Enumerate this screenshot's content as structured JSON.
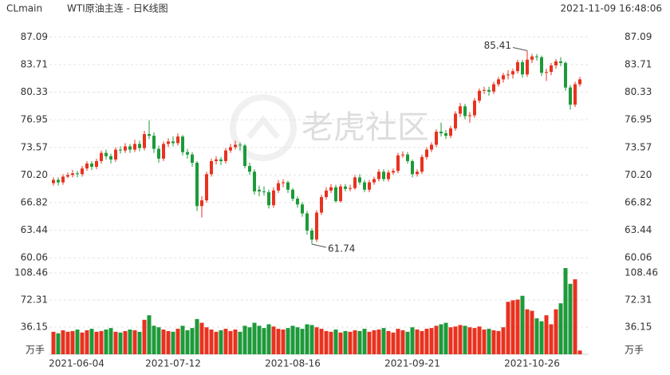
{
  "header": {
    "symbol": "CLmain",
    "title": "WTI原油主连 - 日K线图",
    "timestamp": "2021-11-09 16:48:06"
  },
  "chart_data": {
    "type": "candlestick",
    "watermark": "老虎社区",
    "up_color": "#e8321f",
    "down_color": "#1d9a3a",
    "categories": [
      "2021-06-04",
      null,
      null,
      null,
      null,
      null,
      null,
      null,
      null,
      null,
      null,
      null,
      null,
      null,
      null,
      null,
      null,
      null,
      null,
      null,
      null,
      null,
      null,
      null,
      null,
      "2021-07-12",
      null,
      null,
      null,
      null,
      null,
      null,
      null,
      null,
      null,
      null,
      null,
      null,
      null,
      null,
      null,
      null,
      null,
      null,
      null,
      null,
      null,
      null,
      null,
      null,
      "2021-08-16",
      null,
      null,
      null,
      null,
      null,
      null,
      null,
      null,
      null,
      null,
      null,
      null,
      null,
      null,
      null,
      null,
      null,
      null,
      null,
      null,
      null,
      null,
      null,
      null,
      "2021-09-21",
      null,
      null,
      null,
      null,
      null,
      null,
      null,
      null,
      null,
      null,
      null,
      null,
      null,
      null,
      null,
      null,
      null,
      null,
      null,
      null,
      null,
      null,
      null,
      null,
      "2021-10-26",
      null,
      null,
      null,
      null,
      null,
      null,
      null,
      null,
      null,
      null
    ],
    "ohlc": [
      [
        69.2,
        69.9,
        68.9,
        69.6
      ],
      [
        69.6,
        69.9,
        68.9,
        69.3
      ],
      [
        69.3,
        70.3,
        69.0,
        70.0
      ],
      [
        70.0,
        70.5,
        69.8,
        70.2
      ],
      [
        70.2,
        70.8,
        69.9,
        70.4
      ],
      [
        70.4,
        70.7,
        69.9,
        70.3
      ],
      [
        70.3,
        71.3,
        70.0,
        71.0
      ],
      [
        71.0,
        71.9,
        70.7,
        71.6
      ],
      [
        71.6,
        71.9,
        70.8,
        71.2
      ],
      [
        71.2,
        72.2,
        70.9,
        71.9
      ],
      [
        71.9,
        73.2,
        71.6,
        72.9
      ],
      [
        72.9,
        73.3,
        72.1,
        72.5
      ],
      [
        72.5,
        72.8,
        71.6,
        72.1
      ],
      [
        72.1,
        73.6,
        71.8,
        73.3
      ],
      [
        73.3,
        73.7,
        72.8,
        73.2
      ],
      [
        73.2,
        74.1,
        72.9,
        73.7
      ],
      [
        73.7,
        74.0,
        72.9,
        73.3
      ],
      [
        73.3,
        74.5,
        73.0,
        74.0
      ],
      [
        74.0,
        74.4,
        73.1,
        73.5
      ],
      [
        73.5,
        75.6,
        73.2,
        75.2
      ],
      [
        75.2,
        76.9,
        74.6,
        75.0
      ],
      [
        75.0,
        75.4,
        72.9,
        73.4
      ],
      [
        73.4,
        73.8,
        71.7,
        72.2
      ],
      [
        72.2,
        74.3,
        71.9,
        74.0
      ],
      [
        74.0,
        74.7,
        73.6,
        74.3
      ],
      [
        74.3,
        74.9,
        73.7,
        74.1
      ],
      [
        74.1,
        75.3,
        73.8,
        74.9
      ],
      [
        74.9,
        75.1,
        72.6,
        73.0
      ],
      [
        73.0,
        73.4,
        72.2,
        72.7
      ],
      [
        72.7,
        73.0,
        71.2,
        71.7
      ],
      [
        71.7,
        71.9,
        65.8,
        66.4
      ],
      [
        66.4,
        67.6,
        65.0,
        67.1
      ],
      [
        67.1,
        70.6,
        66.8,
        70.3
      ],
      [
        70.3,
        72.2,
        70.0,
        71.9
      ],
      [
        71.9,
        72.5,
        71.5,
        72.1
      ],
      [
        72.1,
        72.4,
        71.4,
        71.9
      ],
      [
        71.9,
        73.5,
        71.6,
        73.2
      ],
      [
        73.2,
        74.0,
        72.9,
        73.6
      ],
      [
        73.6,
        74.4,
        73.3,
        73.9
      ],
      [
        73.9,
        74.2,
        73.2,
        73.8
      ],
      [
        73.8,
        74.0,
        71.0,
        71.3
      ],
      [
        71.3,
        71.7,
        70.2,
        70.6
      ],
      [
        70.6,
        70.9,
        67.8,
        68.2
      ],
      [
        68.4,
        68.9,
        67.6,
        68.2
      ],
      [
        68.2,
        68.8,
        67.7,
        68.1
      ],
      [
        68.1,
        68.4,
        66.1,
        66.5
      ],
      [
        66.5,
        68.7,
        66.2,
        68.3
      ],
      [
        68.3,
        69.6,
        68.0,
        69.2
      ],
      [
        69.2,
        69.7,
        68.7,
        69.3
      ],
      [
        69.3,
        69.5,
        68.0,
        68.4
      ],
      [
        68.4,
        68.6,
        67.0,
        67.3
      ],
      [
        67.3,
        67.6,
        66.2,
        66.6
      ],
      [
        66.6,
        66.9,
        65.1,
        65.5
      ],
      [
        65.5,
        65.8,
        62.9,
        63.4
      ],
      [
        63.4,
        63.7,
        61.74,
        62.3
      ],
      [
        62.3,
        65.9,
        62.0,
        65.6
      ],
      [
        65.6,
        67.8,
        65.3,
        67.5
      ],
      [
        67.5,
        68.7,
        67.2,
        68.3
      ],
      [
        68.3,
        69.1,
        68.0,
        68.7
      ],
      [
        68.7,
        69.0,
        66.8,
        67.0
      ],
      [
        67.0,
        69.1,
        66.8,
        68.8
      ],
      [
        68.8,
        69.1,
        68.2,
        68.5
      ],
      [
        68.5,
        69.0,
        68.2,
        68.6
      ],
      [
        68.6,
        70.2,
        68.4,
        69.9
      ],
      [
        69.9,
        70.3,
        69.0,
        69.3
      ],
      [
        69.3,
        69.6,
        68.1,
        68.4
      ],
      [
        68.4,
        69.6,
        68.1,
        69.3
      ],
      [
        69.3,
        70.0,
        69.0,
        69.7
      ],
      [
        69.7,
        70.9,
        69.4,
        70.6
      ],
      [
        70.6,
        70.9,
        69.4,
        69.7
      ],
      [
        69.7,
        70.8,
        69.4,
        70.5
      ],
      [
        70.5,
        71.0,
        70.2,
        70.7
      ],
      [
        70.7,
        72.9,
        70.4,
        72.6
      ],
      [
        72.6,
        73.1,
        72.3,
        72.7
      ],
      [
        72.7,
        73.0,
        71.6,
        71.9
      ],
      [
        71.9,
        72.1,
        69.9,
        70.3
      ],
      [
        70.3,
        70.9,
        70.0,
        70.6
      ],
      [
        70.6,
        72.7,
        70.3,
        72.4
      ],
      [
        72.4,
        73.6,
        72.1,
        73.3
      ],
      [
        73.3,
        74.2,
        73.0,
        73.9
      ],
      [
        73.9,
        75.8,
        73.6,
        75.5
      ],
      [
        75.5,
        76.6,
        74.9,
        75.3
      ],
      [
        75.3,
        75.7,
        74.6,
        75.0
      ],
      [
        75.0,
        76.2,
        74.7,
        75.9
      ],
      [
        75.9,
        78.0,
        75.6,
        77.7
      ],
      [
        77.7,
        79.0,
        77.3,
        78.6
      ],
      [
        78.6,
        78.9,
        77.0,
        77.4
      ],
      [
        77.4,
        77.9,
        76.6,
        77.5
      ],
      [
        77.5,
        79.6,
        77.2,
        79.3
      ],
      [
        79.3,
        80.8,
        79.0,
        80.5
      ],
      [
        80.5,
        81.0,
        80.1,
        80.6
      ],
      [
        80.6,
        81.0,
        79.9,
        80.4
      ],
      [
        80.4,
        81.6,
        80.1,
        81.3
      ],
      [
        81.3,
        82.2,
        81.0,
        81.9
      ],
      [
        81.9,
        82.7,
        81.5,
        82.4
      ],
      [
        82.4,
        83.0,
        81.9,
        82.5
      ],
      [
        82.5,
        83.2,
        82.0,
        82.9
      ],
      [
        82.9,
        84.3,
        82.6,
        84.0
      ],
      [
        84.0,
        84.3,
        82.1,
        82.5
      ],
      [
        82.5,
        85.41,
        82.2,
        84.3
      ],
      [
        84.3,
        85.0,
        83.9,
        84.7
      ],
      [
        84.7,
        85.0,
        84.2,
        84.6
      ],
      [
        84.6,
        84.8,
        82.3,
        82.7
      ],
      [
        82.7,
        83.2,
        81.7,
        82.8
      ],
      [
        82.8,
        83.9,
        82.4,
        83.6
      ],
      [
        83.6,
        84.4,
        83.2,
        84.1
      ],
      [
        84.1,
        84.6,
        83.5,
        83.9
      ],
      [
        83.9,
        84.1,
        80.5,
        80.9
      ],
      [
        80.9,
        81.2,
        78.2,
        78.8
      ],
      [
        78.8,
        81.6,
        78.5,
        81.3
      ],
      [
        81.3,
        82.2,
        81.0,
        81.9
      ]
    ],
    "extremes": {
      "high": 85.41,
      "low": 61.74
    },
    "ylim": [
      59.4,
      87.7
    ],
    "yticks": [
      60.06,
      63.44,
      66.82,
      {
        "value": 70.2,
        "label": "70.20"
      },
      73.57,
      76.95,
      80.33,
      83.71,
      87.09
    ],
    "volume": [
      30,
      28,
      32,
      30,
      31,
      33,
      29,
      32,
      34,
      30,
      31,
      33,
      35,
      30,
      29,
      31,
      33,
      32,
      30,
      46,
      52,
      38,
      36,
      33,
      31,
      30,
      34,
      38,
      32,
      35,
      47,
      42,
      36,
      33,
      30,
      32,
      34,
      31,
      33,
      30,
      38,
      36,
      42,
      38,
      35,
      40,
      37,
      34,
      33,
      35,
      38,
      36,
      34,
      40,
      39,
      36,
      34,
      31,
      30,
      33,
      29,
      31,
      30,
      32,
      31,
      34,
      30,
      32,
      33,
      35,
      31,
      29,
      34,
      32,
      30,
      36,
      33,
      31,
      34,
      35,
      38,
      40,
      42,
      36,
      37,
      39,
      38,
      36,
      35,
      37,
      33,
      34,
      32,
      31,
      36,
      70,
      72,
      73,
      78,
      60,
      58,
      48,
      44,
      52,
      40,
      60,
      68,
      115,
      94,
      100,
      5
    ],
    "volume_unit": "万手",
    "vlim": [
      0,
      115
    ],
    "vticks": [
      36.15,
      72.31,
      108.46
    ],
    "grid": true
  }
}
